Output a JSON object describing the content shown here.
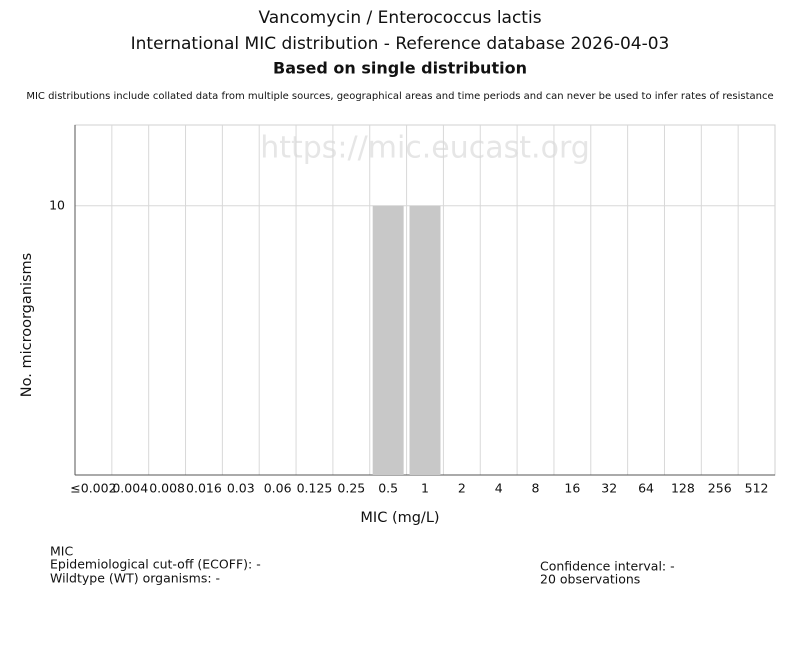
{
  "chart_data": {
    "type": "bar",
    "title": "Vancomycin / Enterococcus lactis",
    "subtitles": [
      "International MIC distribution - Reference database 2026-04-03",
      "Based on single distribution"
    ],
    "note": "MIC distributions include collated data from multiple sources, geographical areas and time periods and can never be used to infer rates of resistance",
    "watermark": "https://mic.eucast.org",
    "x_label": "MIC (mg/L)",
    "y_label": "No. microorganisms",
    "categories": [
      "≤0.002",
      "0.004",
      "0.008",
      "0.016",
      "0.03",
      "0.06",
      "0.125",
      "0.25",
      "0.5",
      "1",
      "2",
      "4",
      "8",
      "16",
      "32",
      "64",
      "128",
      "256",
      "512"
    ],
    "values": [
      0,
      0,
      0,
      0,
      0,
      0,
      0,
      0,
      10,
      10,
      0,
      0,
      0,
      0,
      0,
      0,
      0,
      0,
      0
    ],
    "color": "#c8c8c8",
    "ylim": [
      0,
      13
    ],
    "yticks": [
      10
    ],
    "grid": true,
    "footer_left": [
      "MIC",
      "Epidemiological cut-off (ECOFF): -",
      "Wildtype (WT) organisms:  -"
    ],
    "footer_right": [
      "Confidence interval: -",
      "20 observations"
    ]
  }
}
